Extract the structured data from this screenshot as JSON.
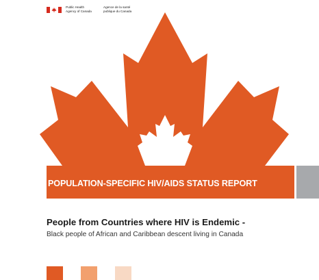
{
  "header": {
    "agency_en_line1": "Public Health",
    "agency_en_line2": "Agency of Canada",
    "agency_fr_line1": "Agence de la santé",
    "agency_fr_line2": "publique du Canada",
    "flag_icon": "canada-flag-icon"
  },
  "cover": {
    "band_title": "POPULATION-SPECIFIC HIV/AIDS STATUS REPORT",
    "title": "People from Countries where HIV is Endemic -",
    "subtitle": "Black people of African and Caribbean descent living in Canada",
    "leaf_icon": "maple-leaf-icon"
  },
  "colors": {
    "brand_orange": "#e05a24",
    "grey_tab": "#a7a9ac",
    "flag_red": "#d52b1e",
    "swatches": [
      "#e05a24",
      "#f2a06e",
      "#f8d9c4"
    ]
  }
}
